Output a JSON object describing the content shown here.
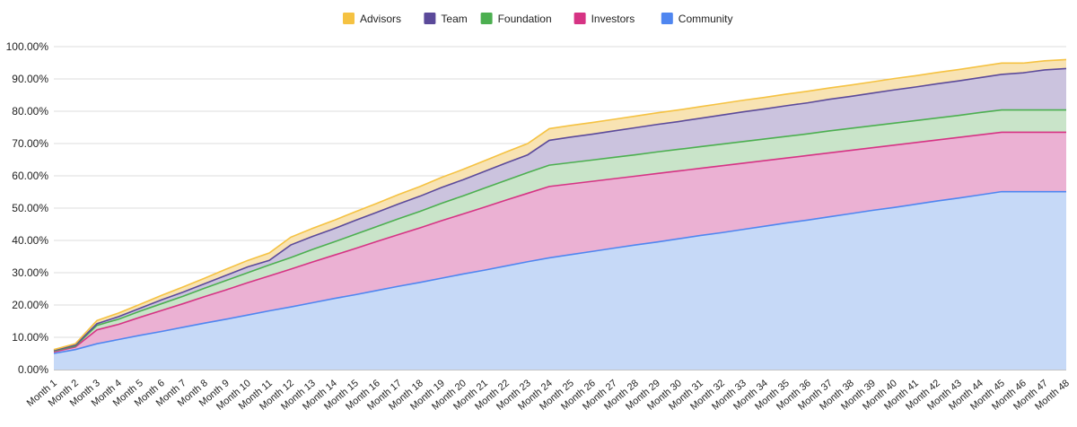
{
  "chart_data": {
    "type": "area",
    "stacked": true,
    "title": "",
    "xlabel": "",
    "ylabel": "",
    "ylim": [
      0,
      100
    ],
    "y_ticks": [
      "0.00%",
      "10.00%",
      "20.00%",
      "30.00%",
      "40.00%",
      "50.00%",
      "60.00%",
      "70.00%",
      "80.00%",
      "90.00%",
      "100.00%"
    ],
    "legend_position": "top-center",
    "legend_order": [
      "Advisors",
      "Team",
      "Foundation",
      "Investors",
      "Community"
    ],
    "categories": [
      "Month 1",
      "Month 2",
      "Month 3",
      "Month 4",
      "Month 5",
      "Month 6",
      "Month 7",
      "Month 8",
      "Month 9",
      "Month 10",
      "Month 11",
      "Month 12",
      "Month 13",
      "Month 14",
      "Month 15",
      "Month 16",
      "Month 17",
      "Month 18",
      "Month 19",
      "Month 20",
      "Month 21",
      "Month 22",
      "Month 23",
      "Month 24",
      "Month 25",
      "Month 26",
      "Month 27",
      "Month 28",
      "Month 29",
      "Month 30",
      "Month 31",
      "Month 32",
      "Month 33",
      "Month 34",
      "Month 35",
      "Month 36",
      "Month 37",
      "Month 38",
      "Month 39",
      "Month 40",
      "Month 41",
      "Month 42",
      "Month 43",
      "Month 44",
      "Month 45",
      "Month 46",
      "Month 47",
      "Month 48"
    ],
    "series": [
      {
        "name": "Community",
        "color": "#4f86f0",
        "fill": "#c6d9f7",
        "values": [
          5.0,
          6.2,
          8.0,
          9.3,
          10.6,
          11.8,
          13.1,
          14.4,
          15.6,
          16.9,
          18.2,
          19.4,
          20.7,
          22.0,
          23.2,
          24.5,
          25.8,
          27.0,
          28.3,
          29.6,
          30.8,
          32.1,
          33.4,
          34.6,
          35.6,
          36.6,
          37.6,
          38.6,
          39.5,
          40.5,
          41.5,
          42.4,
          43.4,
          44.4,
          45.4,
          46.3,
          47.3,
          48.3,
          49.3,
          50.2,
          51.2,
          52.2,
          53.1,
          54.1,
          55.1,
          55.1,
          55.1,
          55.1
        ]
      },
      {
        "name": "Investors",
        "color": "#d63384",
        "fill": "#ebb1d3",
        "values": [
          0.5,
          0.8,
          4.3,
          4.7,
          5.6,
          6.5,
          7.3,
          8.2,
          9.1,
          10.0,
          10.8,
          11.7,
          12.6,
          13.4,
          14.3,
          15.2,
          16.0,
          16.9,
          17.8,
          18.6,
          19.5,
          20.4,
          21.2,
          22.1,
          21.9,
          21.7,
          21.5,
          21.3,
          21.2,
          21.0,
          20.8,
          20.7,
          20.5,
          20.3,
          20.1,
          20.0,
          19.8,
          19.6,
          19.4,
          19.3,
          19.1,
          18.9,
          18.8,
          18.6,
          18.4,
          18.4,
          18.4,
          18.4
        ]
      },
      {
        "name": "Foundation",
        "color": "#4caf50",
        "fill": "#c9e4c9",
        "values": [
          0.3,
          0.3,
          1.4,
          1.6,
          1.9,
          2.1,
          2.3,
          2.6,
          2.9,
          3.1,
          3.4,
          3.6,
          3.9,
          4.1,
          4.4,
          4.6,
          4.9,
          5.1,
          5.4,
          5.6,
          5.9,
          6.1,
          6.4,
          6.6,
          6.6,
          6.6,
          6.6,
          6.6,
          6.7,
          6.7,
          6.7,
          6.7,
          6.7,
          6.7,
          6.7,
          6.7,
          6.8,
          6.8,
          6.8,
          6.8,
          6.8,
          6.8,
          6.8,
          6.9,
          6.9,
          6.9,
          6.9,
          6.9
        ]
      },
      {
        "name": "Team",
        "color": "#5b4a9a",
        "fill": "#cbc3de",
        "values": [
          0.2,
          0.3,
          0.5,
          0.8,
          0.9,
          1.2,
          1.3,
          1.4,
          1.6,
          1.8,
          1.4,
          3.9,
          4.0,
          4.1,
          4.3,
          4.4,
          4.6,
          4.7,
          4.9,
          5.0,
          5.2,
          5.4,
          5.5,
          7.7,
          7.9,
          8.0,
          8.2,
          8.4,
          8.5,
          8.6,
          8.8,
          9.0,
          9.2,
          9.3,
          9.5,
          9.6,
          9.8,
          9.9,
          10.1,
          10.3,
          10.4,
          10.6,
          10.7,
          10.8,
          11.0,
          11.5,
          12.4,
          12.8
        ]
      },
      {
        "name": "Advisors",
        "color": "#f5c242",
        "fill": "#f8e3b3",
        "values": [
          0.2,
          0.4,
          1.0,
          1.1,
          1.2,
          1.4,
          1.6,
          1.7,
          1.9,
          2.0,
          2.3,
          2.4,
          2.5,
          2.6,
          2.7,
          2.8,
          2.9,
          3.0,
          3.1,
          3.2,
          3.3,
          3.4,
          3.5,
          3.6,
          3.6,
          3.6,
          3.6,
          3.6,
          3.6,
          3.6,
          3.6,
          3.6,
          3.6,
          3.6,
          3.6,
          3.6,
          3.5,
          3.5,
          3.5,
          3.5,
          3.5,
          3.5,
          3.5,
          3.5,
          3.5,
          3.0,
          2.8,
          2.8
        ]
      }
    ]
  }
}
